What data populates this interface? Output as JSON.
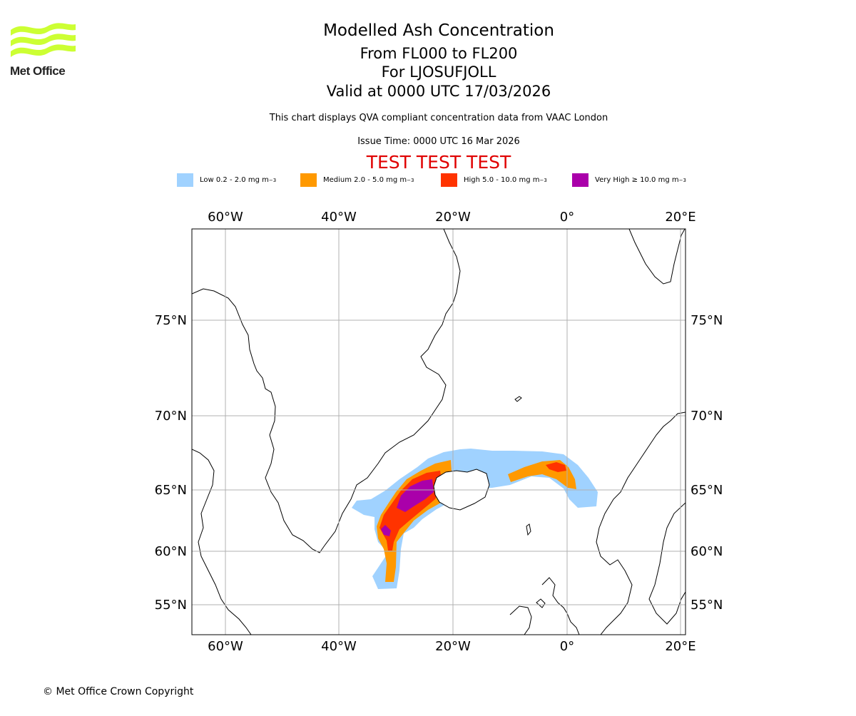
{
  "logo": {
    "text": "Met Office",
    "icon": "met-office-wave-logo",
    "color": "#ccff33"
  },
  "title": {
    "line1": "Modelled Ash Concentration",
    "line2": "From FL000 to FL200",
    "line3": "For LJOSUFJOLL",
    "line4": "Valid at 0000 UTC 17/03/2026"
  },
  "subtitle": "This chart displays QVA compliant concentration data from VAAC London",
  "issue_time": "Issue Time: 0000 UTC 16 Mar 2026",
  "test_banner": "TEST TEST TEST",
  "legend": [
    {
      "label": "Low 0.2 - 2.0 mg m",
      "unit_sup": "−3",
      "color": "#a0d2ff"
    },
    {
      "label": "Medium 2.0 - 5.0 mg m",
      "unit_sup": "−3",
      "color": "#ff9900"
    },
    {
      "label": "High 5.0 - 10.0 mg m",
      "unit_sup": "−3",
      "color": "#ff3300"
    },
    {
      "label": "Very High  ≥  10.0 mg m",
      "unit_sup": "−3",
      "color": "#aa00aa"
    }
  ],
  "map": {
    "lon_labels": [
      "60°W",
      "40°W",
      "20°W",
      "0°",
      "20°E"
    ],
    "lat_labels": [
      "75°N",
      "70°N",
      "65°N",
      "60°N",
      "55°N"
    ],
    "grid": true
  },
  "footer": "© Met Office Crown Copyright"
}
